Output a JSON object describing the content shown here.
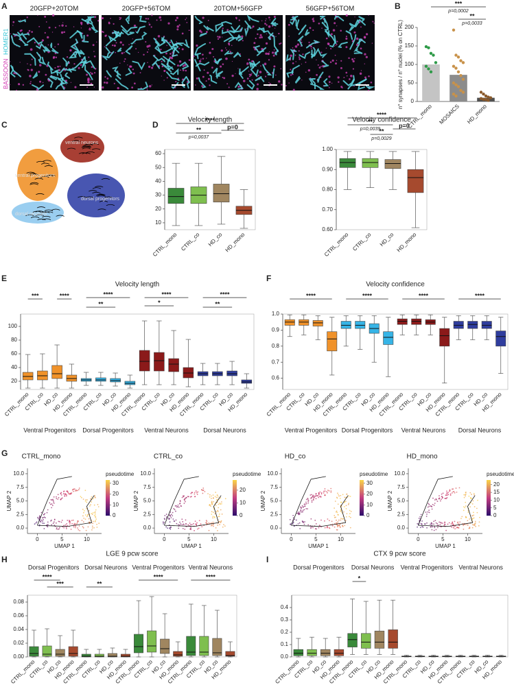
{
  "panel_labels": [
    "A",
    "B",
    "C",
    "D",
    "E",
    "F",
    "G",
    "H",
    "I"
  ],
  "microscopy": {
    "titles": [
      "20GFP+20TOM",
      "20GFP+56TOM",
      "20TOM+56GFP",
      "56GFP+56TOM"
    ],
    "stain_labels": [
      "BASSOON",
      "HOMER1"
    ]
  },
  "velocity_umap": {
    "labels": [
      "ventral neurons",
      "ventral progenitors",
      "dorsal neurons",
      "dorsal progenitors"
    ]
  },
  "chart_data": [
    {
      "type": "bar",
      "ylabel": "n° synapses / n° nuclei (% on CTRL)",
      "categories": [
        "CTRL_mono",
        "MOSAICS",
        "HD_mono"
      ],
      "values": [
        100,
        72,
        10
      ],
      "colors": [
        "#c4c4c4",
        "#8c8c8c",
        "#4f4f4f"
      ],
      "point_colors": [
        "#2e9a48",
        "#c8924a",
        "#8b5a2b"
      ],
      "points": [
        [
          148,
          145,
          130,
          125,
          105,
          95,
          88,
          80
        ],
        [
          193,
          125,
          120,
          110,
          105,
          95,
          90,
          80,
          70,
          60,
          50,
          45,
          40,
          30,
          25,
          20,
          15
        ],
        [
          25,
          20,
          15,
          12,
          10,
          8,
          6,
          5,
          3
        ]
      ],
      "ylim": [
        0,
        200
      ],
      "yticks": [
        0,
        50,
        100,
        150,
        200
      ],
      "annotations": [
        "***",
        "p=0,0002",
        "**",
        "p=0,0033"
      ]
    },
    {
      "type": "box",
      "title": "Velocity length",
      "categories": [
        "CTRL_mono",
        "CTRL_co",
        "HD_co",
        "HD_mono"
      ],
      "boxes": [
        [
          8,
          24,
          29,
          35,
          53
        ],
        [
          8,
          24,
          30,
          36,
          53
        ],
        [
          9,
          25,
          31,
          38,
          58
        ],
        [
          6,
          16,
          19,
          22,
          34
        ]
      ],
      "colors": [
        "#3a8a3a",
        "#7fbf4f",
        "#a08660",
        "#a64a2e"
      ],
      "ylim": [
        5,
        63
      ],
      "yticks": [
        10,
        20,
        30,
        40,
        50,
        60
      ],
      "annotations": [
        "****",
        "**",
        "p=0,0037",
        "p=0"
      ]
    },
    {
      "type": "box",
      "title": "Velocity confidence",
      "categories": [
        "CTRL_mono",
        "CTRL_co",
        "HD_co",
        "HD_mono"
      ],
      "boxes": [
        [
          0.8,
          0.91,
          0.935,
          0.955,
          0.99
        ],
        [
          0.81,
          0.91,
          0.935,
          0.955,
          0.99
        ],
        [
          0.8,
          0.905,
          0.93,
          0.95,
          0.99
        ],
        [
          0.61,
          0.785,
          0.86,
          0.9,
          0.99
        ]
      ],
      "colors": [
        "#3a8a3a",
        "#7fbf4f",
        "#a08660",
        "#a64a2e"
      ],
      "ylim": [
        0.6,
        1.0
      ],
      "yticks": [
        {
          "value": 0.6,
          "label": "0.60"
        },
        {
          "value": 0.7,
          "label": "0.70"
        },
        {
          "value": 0.8,
          "label": "0.80"
        },
        {
          "value": 0.9,
          "label": "0.90"
        },
        {
          "value": 1,
          "label": "1.00"
        }
      ],
      "annotations": [
        "****",
        "**",
        "**",
        "p=0,0039",
        "p=0,0029",
        "p=0"
      ]
    },
    {
      "type": "box",
      "title": "Velocity length",
      "categories": [
        "CTRL_mono",
        "CTRL_co",
        "HD_co",
        "HD_mono",
        "CTRL_mono",
        "CTRL_co",
        "HD_co",
        "HD_mono",
        "CTRL_mono",
        "CTRL_co",
        "HD_co",
        "HD_mono",
        "CTRL_mono",
        "CTRL_co",
        "HD_co",
        "HD_mono"
      ],
      "boxes": [
        [
          10,
          22,
          27,
          33,
          59
        ],
        [
          10,
          22,
          28,
          35,
          60
        ],
        [
          10,
          24,
          31,
          43,
          73
        ],
        [
          10,
          20,
          24,
          29,
          45
        ],
        [
          14,
          20,
          22,
          24,
          33
        ],
        [
          14,
          20,
          22,
          25,
          33
        ],
        [
          13,
          19,
          21,
          24,
          32
        ],
        [
          10,
          15,
          17,
          20,
          29
        ],
        [
          15,
          35,
          49,
          65,
          108
        ],
        [
          15,
          35,
          50,
          62,
          108
        ],
        [
          15,
          34,
          45,
          53,
          94
        ],
        [
          12,
          25,
          32,
          40,
          81
        ],
        [
          15,
          28,
          31,
          34,
          46
        ],
        [
          15,
          28,
          31,
          34,
          46
        ],
        [
          15,
          28,
          31,
          35,
          49
        ],
        [
          10,
          17,
          19,
          22,
          31
        ]
      ],
      "colors": [
        "#f0922a",
        "#f0922a",
        "#f0922a",
        "#f0922a",
        "#36b4e6",
        "#36b4e6",
        "#36b4e6",
        "#36b4e6",
        "#8b1a1a",
        "#8b1a1a",
        "#8b1a1a",
        "#8b1a1a",
        "#2f3d9e",
        "#2f3d9e",
        "#2f3d9e",
        "#2f3d9e"
      ],
      "groups": [
        {
          "name": "Ventral Progenitors",
          "color": "#f0922a"
        },
        {
          "name": "Dorsal Progenitors",
          "color": "#36b4e6"
        },
        {
          "name": "Ventral Neurons",
          "color": "#8b1a1a"
        },
        {
          "name": "Dorsal Neurons",
          "color": "#2f3d9e"
        }
      ],
      "ylim": [
        8,
        118
      ],
      "yticks": [
        20,
        40,
        60,
        80,
        100
      ],
      "annotations": [
        "***",
        "****",
        "****",
        "**",
        "****",
        "*",
        "****",
        "**"
      ]
    },
    {
      "type": "box",
      "title": "Velocity confidence",
      "categories": [
        "CTRL_mono",
        "CTRL_co",
        "HD_co",
        "HD_mono",
        "CTRL_mono",
        "CTRL_co",
        "HD_co",
        "HD_mono",
        "CTRL_mono",
        "CTRL_co",
        "HD_co",
        "HD_mono",
        "CTRL_mono",
        "CTRL_co",
        "HD_co",
        "HD_mono"
      ],
      "boxes": [
        [
          0.86,
          0.93,
          0.95,
          0.965,
          0.995
        ],
        [
          0.87,
          0.93,
          0.95,
          0.965,
          0.995
        ],
        [
          0.84,
          0.925,
          0.945,
          0.96,
          0.99
        ],
        [
          0.62,
          0.77,
          0.845,
          0.89,
          0.98
        ],
        [
          0.8,
          0.91,
          0.93,
          0.955,
          0.99
        ],
        [
          0.78,
          0.91,
          0.93,
          0.955,
          0.99
        ],
        [
          0.7,
          0.88,
          0.91,
          0.94,
          0.99
        ],
        [
          0.61,
          0.81,
          0.855,
          0.89,
          0.98
        ],
        [
          0.87,
          0.935,
          0.955,
          0.97,
          0.995
        ],
        [
          0.87,
          0.935,
          0.955,
          0.97,
          0.995
        ],
        [
          0.87,
          0.935,
          0.95,
          0.965,
          0.995
        ],
        [
          0.57,
          0.8,
          0.865,
          0.91,
          0.98
        ],
        [
          0.84,
          0.91,
          0.93,
          0.955,
          0.99
        ],
        [
          0.84,
          0.91,
          0.935,
          0.955,
          0.99
        ],
        [
          0.84,
          0.91,
          0.93,
          0.955,
          0.99
        ],
        [
          0.63,
          0.8,
          0.86,
          0.895,
          0.98
        ]
      ],
      "colors": [
        "#f0922a",
        "#f0922a",
        "#f0922a",
        "#f0922a",
        "#36b4e6",
        "#36b4e6",
        "#36b4e6",
        "#36b4e6",
        "#8b1a1a",
        "#8b1a1a",
        "#8b1a1a",
        "#8b1a1a",
        "#2f3d9e",
        "#2f3d9e",
        "#2f3d9e",
        "#2f3d9e"
      ],
      "groups": [
        {
          "name": "Ventral Progenitors",
          "color": "#f0922a"
        },
        {
          "name": "Dorsal Progenitors",
          "color": "#36b4e6"
        },
        {
          "name": "Ventral Neurons",
          "color": "#8b1a1a"
        },
        {
          "name": "Dorsal Neurons",
          "color": "#2f3d9e"
        }
      ],
      "ylim": [
        0.53,
        1.0
      ],
      "yticks": [
        0.6,
        0.7,
        0.8,
        0.9,
        {
          "value": 1,
          "label": "1.0"
        }
      ],
      "annotations": [
        "****",
        "****",
        "****",
        "****"
      ]
    },
    {
      "type": "umap",
      "title": "CTRL_mono",
      "xlabel": "UMAP 1",
      "ylabel": "UMAP 2",
      "xlim": [
        -2,
        13
      ],
      "ylim": [
        -1,
        11
      ],
      "xticks": [
        0,
        5,
        10
      ],
      "yticks": [
        {
          "value": 0,
          "label": "0.0"
        },
        2.5,
        {
          "value": 5,
          "label": "5.0"
        },
        7.5,
        {
          "value": 10,
          "label": "10.0"
        }
      ],
      "colorbar": {
        "label": "pseudotime",
        "lim": [
          0,
          33
        ],
        "ticks": [
          0,
          10,
          20,
          30
        ]
      }
    },
    {
      "type": "umap",
      "title": "CTRL_co",
      "xlabel": "UMAP 1",
      "ylabel": "UMAP 2",
      "xlim": [
        -2,
        13
      ],
      "ylim": [
        -1,
        11
      ],
      "xticks": [
        0,
        5,
        10
      ],
      "yticks": [
        {
          "value": 0,
          "label": "0.0"
        },
        2.5,
        {
          "value": 5,
          "label": "5.0"
        },
        7.5,
        {
          "value": 10,
          "label": "10.0"
        }
      ],
      "colorbar": {
        "label": "pseudotime",
        "lim": [
          0,
          28
        ],
        "ticks": [
          0,
          10,
          20
        ]
      }
    },
    {
      "type": "umap",
      "title": "HD_co",
      "xlabel": "UMAP 1",
      "ylabel": "UMAP 2",
      "xlim": [
        -2,
        13
      ],
      "ylim": [
        -1,
        11
      ],
      "xticks": [
        0,
        5,
        10
      ],
      "yticks": [
        {
          "value": 0,
          "label": "0.0"
        },
        2.5,
        {
          "value": 5,
          "label": "5.0"
        },
        7.5,
        {
          "value": 10,
          "label": "10.0"
        }
      ],
      "colorbar": {
        "label": "pseudotime",
        "lim": [
          0,
          33
        ],
        "ticks": [
          0,
          10,
          20,
          30
        ]
      }
    },
    {
      "type": "umap",
      "title": "HD_mono",
      "xlabel": "UMAP 1",
      "ylabel": "UMAP 2",
      "xlim": [
        -2,
        13
      ],
      "ylim": [
        -1,
        11
      ],
      "xticks": [
        0,
        5,
        10
      ],
      "yticks": [
        {
          "value": 0,
          "label": "0.0"
        },
        2.5,
        {
          "value": 5,
          "label": "5.0"
        },
        7.5,
        {
          "value": 10,
          "label": "10.0"
        }
      ],
      "colorbar": {
        "label": "pseudotime",
        "lim": [
          0,
          23
        ],
        "ticks": [
          0,
          5,
          10,
          15,
          20
        ]
      }
    },
    {
      "type": "box",
      "title": "LGE 9 pcw score",
      "categories": [
        "CTRL_mono",
        "CTRL_co",
        "HD_co",
        "HD_mono",
        "CTRL_mono",
        "CTRL_co",
        "HD_co",
        "HD_mono",
        "CTRL_mono",
        "CTRL_co",
        "HD_co",
        "HD_mono",
        "CTRL_mono",
        "CTRL_co",
        "HD_co",
        "HD_mono"
      ],
      "boxes": [
        [
          0,
          0.001,
          0.005,
          0.015,
          0.039
        ],
        [
          0,
          0.001,
          0.004,
          0.016,
          0.041
        ],
        [
          0,
          0.001,
          0.004,
          0.011,
          0.031
        ],
        [
          0,
          0.001,
          0.005,
          0.015,
          0.039
        ],
        [
          0,
          0,
          0.001,
          0.004,
          0.011
        ],
        [
          0,
          0,
          0.001,
          0.004,
          0.011
        ],
        [
          0,
          0,
          0.001,
          0.005,
          0.013
        ],
        [
          0,
          0,
          0.001,
          0.004,
          0.011
        ],
        [
          0,
          0.006,
          0.015,
          0.033,
          0.082
        ],
        [
          0,
          0.007,
          0.016,
          0.038,
          0.088
        ],
        [
          0,
          0.005,
          0.012,
          0.026,
          0.063
        ],
        [
          0,
          0.001,
          0.003,
          0.008,
          0.022
        ],
        [
          0,
          0.002,
          0.007,
          0.03,
          0.077
        ],
        [
          0,
          0.002,
          0.007,
          0.03,
          0.075
        ],
        [
          0,
          0.002,
          0.006,
          0.027,
          0.068
        ],
        [
          0,
          0.001,
          0.002,
          0.008,
          0.022
        ]
      ],
      "colors": [
        "#3a8a3a",
        "#7fbf4f",
        "#a08660",
        "#a64a2e",
        "#3a8a3a",
        "#7fbf4f",
        "#a08660",
        "#a64a2e",
        "#3a8a3a",
        "#7fbf4f",
        "#a08660",
        "#a64a2e",
        "#3a8a3a",
        "#7fbf4f",
        "#a08660",
        "#a64a2e"
      ],
      "groups": [
        {
          "name": "Dorsal Progenitors",
          "color": "#6ec3ea"
        },
        {
          "name": "Dorsal Neurons",
          "color": "#2f3d9e"
        },
        {
          "name": "Ventral Progenitors",
          "color": "#f0922a"
        },
        {
          "name": "Ventral Neurons",
          "color": "#8b1a1a"
        }
      ],
      "ylim": [
        0,
        0.09
      ],
      "yticks": [
        {
          "value": 0,
          "label": "0.00"
        },
        0.02,
        0.04,
        0.06,
        0.08
      ],
      "annotations": [
        "****",
        "***",
        "**",
        "****",
        "****"
      ]
    },
    {
      "type": "box",
      "title": "CTX 9 pcw score",
      "categories": [
        "CTRL_mono",
        "CTRL_co",
        "HD_co",
        "HD_mono",
        "CTRL_mono",
        "CTRL_co",
        "HD_co",
        "HD_mono",
        "CTRL_mono",
        "CTRL_co",
        "HD_co",
        "HD_mono",
        "CTRL_mono",
        "CTRL_co",
        "HD_co",
        "HD_mono"
      ],
      "boxes": [
        [
          0,
          0.01,
          0.03,
          0.06,
          0.15
        ],
        [
          0,
          0.01,
          0.03,
          0.06,
          0.16
        ],
        [
          0,
          0.01,
          0.03,
          0.06,
          0.15
        ],
        [
          0,
          0.01,
          0.03,
          0.06,
          0.16
        ],
        [
          0.02,
          0.08,
          0.14,
          0.19,
          0.47
        ],
        [
          0.02,
          0.07,
          0.12,
          0.19,
          0.45
        ],
        [
          0.02,
          0.07,
          0.12,
          0.21,
          0.46
        ],
        [
          0.02,
          0.07,
          0.12,
          0.22,
          0.46
        ],
        [
          0,
          0.002,
          0.004,
          0.007,
          0.014
        ],
        [
          0,
          0.002,
          0.004,
          0.007,
          0.014
        ],
        [
          0,
          0.002,
          0.004,
          0.007,
          0.014
        ],
        [
          0,
          0.002,
          0.004,
          0.007,
          0.014
        ],
        [
          0,
          0.002,
          0.004,
          0.007,
          0.014
        ],
        [
          0,
          0.002,
          0.004,
          0.007,
          0.014
        ],
        [
          0,
          0.002,
          0.004,
          0.007,
          0.014
        ],
        [
          0,
          0.002,
          0.004,
          0.007,
          0.014
        ]
      ],
      "colors": [
        "#3a8a3a",
        "#7fbf4f",
        "#a08660",
        "#a64a2e",
        "#3a8a3a",
        "#7fbf4f",
        "#a08660",
        "#a64a2e",
        "#3a8a3a",
        "#7fbf4f",
        "#a08660",
        "#a64a2e",
        "#3a8a3a",
        "#7fbf4f",
        "#a08660",
        "#a64a2e"
      ],
      "groups": [
        {
          "name": "Dorsal Progenitors",
          "color": "#6ec3ea"
        },
        {
          "name": "Dorsal Neurons",
          "color": "#2f3d9e"
        },
        {
          "name": "Ventral Progenitors",
          "color": "#f0922a"
        },
        {
          "name": "Ventral Neurons",
          "color": "#8b1a1a"
        }
      ],
      "ylim": [
        0,
        0.5
      ],
      "yticks": [
        {
          "value": 0,
          "label": "0.0"
        },
        0.1,
        0.2,
        0.3,
        0.4
      ],
      "annotations": [
        "*"
      ]
    }
  ]
}
